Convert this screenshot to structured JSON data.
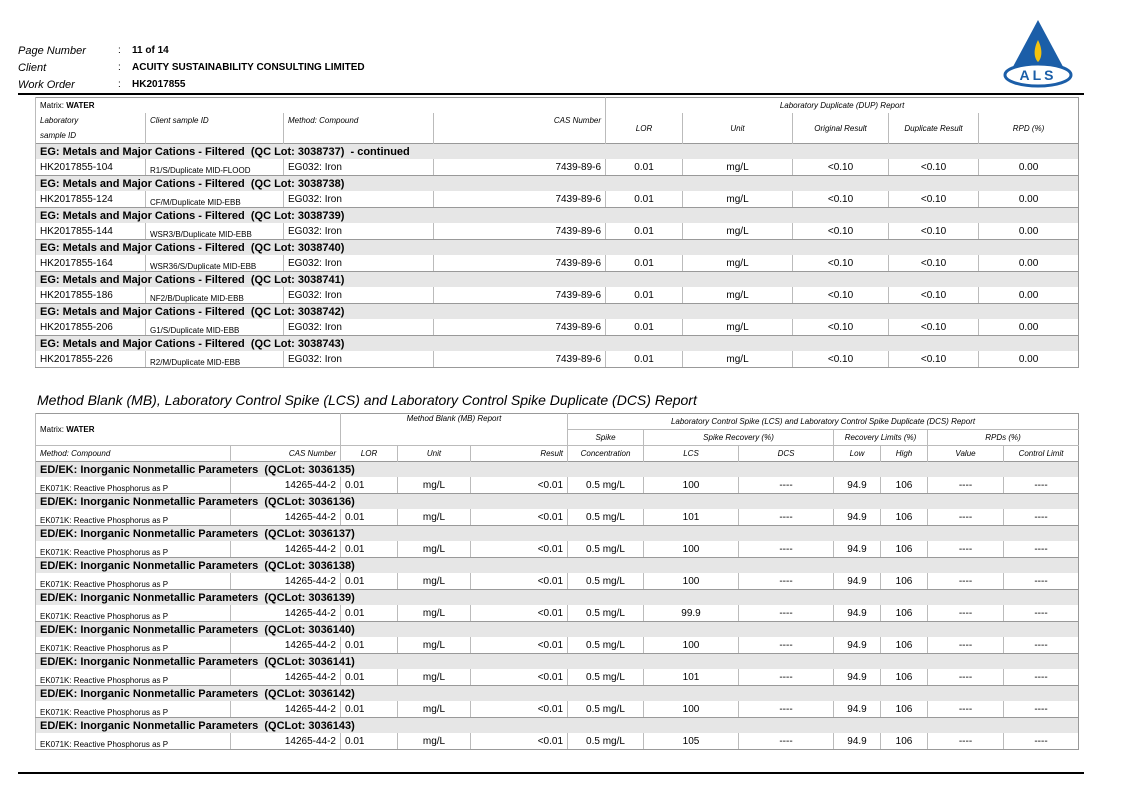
{
  "header": {
    "separator": ":",
    "fields": [
      {
        "label": "Page Number",
        "value": "11 of 14"
      },
      {
        "label": "Client",
        "value": "ACUITY SUSTAINABILITY CONSULTING LIMITED"
      },
      {
        "label": "Work Order",
        "value": "HK2017855"
      }
    ],
    "logo": "ALS"
  },
  "dup": {
    "matrix_label": "Matrix:",
    "matrix": "WATER",
    "report_title": "Laboratory Duplicate (DUP) Report",
    "columns": [
      "Laboratory",
      "Client sample ID",
      "Method: Compound",
      "CAS Number",
      "LOR",
      "Unit",
      "Original Result",
      "Duplicate Result",
      "RPD (%)"
    ],
    "column_sub": "sample ID",
    "groups": [
      {
        "title": "EG: Metals and Major Cations - Filtered  (QC Lot: 3038737)  - continued",
        "rows": [
          [
            "HK2017855-104",
            "R1/S/Duplicate MID-FLOOD",
            "EG032: Iron",
            "7439-89-6",
            "0.01",
            "mg/L",
            "<0.10",
            "<0.10",
            "0.00"
          ]
        ]
      },
      {
        "title": "EG: Metals and Major Cations - Filtered  (QC Lot: 3038738)",
        "rows": [
          [
            "HK2017855-124",
            "CF/M/Duplicate MID-EBB",
            "EG032: Iron",
            "7439-89-6",
            "0.01",
            "mg/L",
            "<0.10",
            "<0.10",
            "0.00"
          ]
        ]
      },
      {
        "title": "EG: Metals and Major Cations - Filtered  (QC Lot: 3038739)",
        "rows": [
          [
            "HK2017855-144",
            "WSR3/B/Duplicate MID-EBB",
            "EG032: Iron",
            "7439-89-6",
            "0.01",
            "mg/L",
            "<0.10",
            "<0.10",
            "0.00"
          ]
        ]
      },
      {
        "title": "EG: Metals and Major Cations - Filtered  (QC Lot: 3038740)",
        "rows": [
          [
            "HK2017855-164",
            "WSR36/S/Duplicate MID-EBB",
            "EG032: Iron",
            "7439-89-6",
            "0.01",
            "mg/L",
            "<0.10",
            "<0.10",
            "0.00"
          ]
        ]
      },
      {
        "title": "EG: Metals and Major Cations - Filtered  (QC Lot: 3038741)",
        "rows": [
          [
            "HK2017855-186",
            "NF2/B/Duplicate MID-EBB",
            "EG032: Iron",
            "7439-89-6",
            "0.01",
            "mg/L",
            "<0.10",
            "<0.10",
            "0.00"
          ]
        ]
      },
      {
        "title": "EG: Metals and Major Cations - Filtered  (QC Lot: 3038742)",
        "rows": [
          [
            "HK2017855-206",
            "G1/S/Duplicate MID-EBB",
            "EG032: Iron",
            "7439-89-6",
            "0.01",
            "mg/L",
            "<0.10",
            "<0.10",
            "0.00"
          ]
        ]
      },
      {
        "title": "EG: Metals and Major Cations - Filtered  (QC Lot: 3038743)",
        "rows": [
          [
            "HK2017855-226",
            "R2/M/Duplicate MID-EBB",
            "EG032: Iron",
            "7439-89-6",
            "0.01",
            "mg/L",
            "<0.10",
            "<0.10",
            "0.00"
          ]
        ]
      }
    ]
  },
  "section_title": "Method Blank (MB), Laboratory Control Spike (LCS) and Laboratory Control Spike Duplicate (DCS) Report",
  "lcs": {
    "matrix_label": "Matrix:",
    "matrix": "WATER",
    "mb_title": "Method Blank (MB) Report",
    "lcs_title": "Laboratory Control Spike (LCS) and Laboratory Control Spike Duplicate (DCS) Report",
    "subheads": [
      "Spike",
      "Spike Recovery (%)",
      "Recovery Limits (%)",
      "RPDs (%)"
    ],
    "columns": [
      "Method: Compound",
      "CAS Number",
      "LOR",
      "Unit",
      "Result",
      "Concentration",
      "LCS",
      "DCS",
      "Low",
      "High",
      "Value",
      "Control Limit"
    ],
    "groups": [
      {
        "title": "ED/EK: Inorganic Nonmetallic Parameters  (QCLot: 3036135)",
        "rows": [
          [
            "EK071K: Reactive Phosphorus as P",
            "14265-44-2",
            "0.01",
            "mg/L",
            "<0.01",
            "0.5 mg/L",
            "100",
            "----",
            "94.9",
            "106",
            "----",
            "----"
          ]
        ]
      },
      {
        "title": "ED/EK: Inorganic Nonmetallic Parameters  (QCLot: 3036136)",
        "rows": [
          [
            "EK071K: Reactive Phosphorus as P",
            "14265-44-2",
            "0.01",
            "mg/L",
            "<0.01",
            "0.5 mg/L",
            "101",
            "----",
            "94.9",
            "106",
            "----",
            "----"
          ]
        ]
      },
      {
        "title": "ED/EK: Inorganic Nonmetallic Parameters  (QCLot: 3036137)",
        "rows": [
          [
            "EK071K: Reactive Phosphorus as P",
            "14265-44-2",
            "0.01",
            "mg/L",
            "<0.01",
            "0.5 mg/L",
            "100",
            "----",
            "94.9",
            "106",
            "----",
            "----"
          ]
        ]
      },
      {
        "title": "ED/EK: Inorganic Nonmetallic Parameters  (QCLot: 3036138)",
        "rows": [
          [
            "EK071K: Reactive Phosphorus as P",
            "14265-44-2",
            "0.01",
            "mg/L",
            "<0.01",
            "0.5 mg/L",
            "100",
            "----",
            "94.9",
            "106",
            "----",
            "----"
          ]
        ]
      },
      {
        "title": "ED/EK: Inorganic Nonmetallic Parameters  (QCLot: 3036139)",
        "rows": [
          [
            "EK071K: Reactive Phosphorus as P",
            "14265-44-2",
            "0.01",
            "mg/L",
            "<0.01",
            "0.5 mg/L",
            "99.9",
            "----",
            "94.9",
            "106",
            "----",
            "----"
          ]
        ]
      },
      {
        "title": "ED/EK: Inorganic Nonmetallic Parameters  (QCLot: 3036140)",
        "rows": [
          [
            "EK071K: Reactive Phosphorus as P",
            "14265-44-2",
            "0.01",
            "mg/L",
            "<0.01",
            "0.5 mg/L",
            "100",
            "----",
            "94.9",
            "106",
            "----",
            "----"
          ]
        ]
      },
      {
        "title": "ED/EK: Inorganic Nonmetallic Parameters  (QCLot: 3036141)",
        "rows": [
          [
            "EK071K: Reactive Phosphorus as P",
            "14265-44-2",
            "0.01",
            "mg/L",
            "<0.01",
            "0.5 mg/L",
            "101",
            "----",
            "94.9",
            "106",
            "----",
            "----"
          ]
        ]
      },
      {
        "title": "ED/EK: Inorganic Nonmetallic Parameters  (QCLot: 3036142)",
        "rows": [
          [
            "EK071K: Reactive Phosphorus as P",
            "14265-44-2",
            "0.01",
            "mg/L",
            "<0.01",
            "0.5 mg/L",
            "100",
            "----",
            "94.9",
            "106",
            "----",
            "----"
          ]
        ]
      },
      {
        "title": "ED/EK: Inorganic Nonmetallic Parameters  (QCLot: 3036143)",
        "rows": [
          [
            "EK071K: Reactive Phosphorus as P",
            "14265-44-2",
            "0.01",
            "mg/L",
            "<0.01",
            "0.5 mg/L",
            "105",
            "----",
            "94.9",
            "106",
            "----",
            "----"
          ]
        ]
      }
    ]
  }
}
